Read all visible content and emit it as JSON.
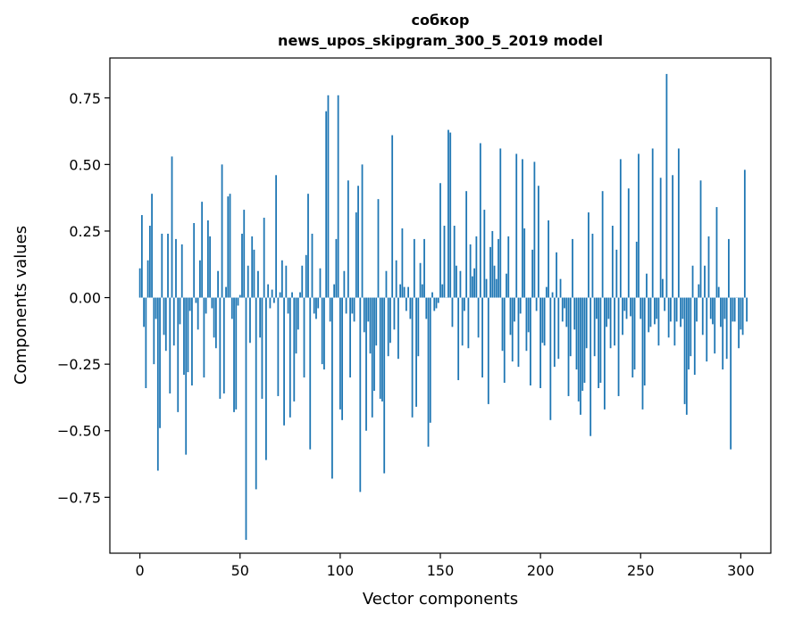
{
  "chart_data": {
    "type": "bar",
    "title_line1": "собкор",
    "title_line2": "news_upos_skipgram_300_5_2019 model",
    "xlabel": "Vector components",
    "ylabel": "Components values",
    "xlim": [
      -15,
      315
    ],
    "ylim": [
      -0.96,
      0.9
    ],
    "xticks": [
      0,
      50,
      100,
      150,
      200,
      250,
      300
    ],
    "xtick_labels": [
      "0",
      "50",
      "100",
      "150",
      "200",
      "250",
      "300"
    ],
    "yticks": [
      -0.75,
      -0.5,
      -0.25,
      0.0,
      0.25,
      0.5,
      0.75
    ],
    "ytick_labels": [
      "−0.75",
      "−0.50",
      "−0.25",
      "0.00",
      "0.25",
      "0.50",
      "0.75"
    ],
    "bar_color": "#1f77b4",
    "values": [
      0.11,
      0.31,
      -0.11,
      -0.34,
      0.14,
      0.27,
      0.39,
      -0.25,
      -0.08,
      -0.65,
      -0.49,
      0.24,
      -0.14,
      -0.2,
      0.24,
      -0.36,
      0.53,
      -0.18,
      0.22,
      -0.43,
      -0.1,
      0.2,
      -0.29,
      -0.59,
      -0.28,
      -0.05,
      -0.33,
      0.28,
      -0.02,
      -0.12,
      0.14,
      0.36,
      -0.3,
      -0.06,
      0.29,
      0.23,
      -0.04,
      -0.15,
      -0.19,
      0.1,
      -0.38,
      0.5,
      -0.36,
      0.04,
      0.38,
      0.39,
      -0.08,
      -0.43,
      -0.42,
      -0.03,
      0.01,
      0.24,
      0.33,
      -0.91,
      0.12,
      -0.17,
      0.23,
      0.18,
      -0.72,
      0.1,
      -0.15,
      -0.38,
      0.3,
      -0.61,
      0.05,
      -0.04,
      0.03,
      -0.02,
      0.46,
      -0.37,
      0.02,
      0.14,
      -0.48,
      0.12,
      -0.06,
      -0.45,
      0.02,
      -0.39,
      -0.21,
      -0.12,
      0.02,
      0.12,
      -0.3,
      0.16,
      0.39,
      -0.57,
      0.24,
      -0.06,
      -0.08,
      -0.04,
      0.11,
      -0.25,
      -0.27,
      0.7,
      0.76,
      -0.09,
      -0.68,
      0.05,
      0.22,
      0.76,
      -0.42,
      -0.46,
      0.1,
      -0.06,
      0.44,
      -0.3,
      -0.06,
      -0.09,
      0.32,
      0.42,
      -0.73,
      0.5,
      -0.13,
      -0.5,
      -0.09,
      -0.21,
      -0.45,
      -0.35,
      -0.18,
      0.37,
      -0.38,
      -0.39,
      -0.66,
      0.1,
      -0.22,
      -0.17,
      0.61,
      -0.12,
      0.14,
      -0.23,
      0.05,
      0.26,
      0.04,
      -0.05,
      0.04,
      -0.08,
      -0.45,
      0.22,
      -0.41,
      -0.22,
      0.13,
      0.05,
      0.22,
      -0.08,
      -0.56,
      -0.47,
      0.02,
      -0.05,
      -0.04,
      -0.02,
      0.43,
      0.05,
      0.27,
      0.0,
      0.63,
      0.62,
      -0.11,
      0.27,
      0.12,
      -0.31,
      0.1,
      -0.18,
      -0.05,
      0.4,
      -0.19,
      0.2,
      0.08,
      0.11,
      0.23,
      -0.15,
      0.58,
      -0.3,
      0.33,
      0.07,
      -0.4,
      0.19,
      0.25,
      0.12,
      0.07,
      0.22,
      0.56,
      -0.2,
      -0.32,
      0.09,
      0.23,
      -0.14,
      -0.24,
      -0.09,
      0.54,
      -0.26,
      -0.06,
      0.52,
      0.26,
      -0.2,
      -0.13,
      -0.33,
      0.18,
      0.51,
      -0.05,
      0.42,
      -0.34,
      -0.17,
      -0.18,
      0.04,
      0.29,
      -0.46,
      0.02,
      -0.26,
      0.17,
      -0.23,
      0.07,
      -0.09,
      -0.04,
      -0.11,
      -0.37,
      -0.22,
      0.22,
      -0.12,
      -0.27,
      -0.39,
      -0.44,
      -0.35,
      -0.32,
      -0.19,
      0.32,
      -0.52,
      0.24,
      -0.22,
      -0.08,
      -0.34,
      -0.32,
      0.4,
      -0.42,
      -0.11,
      -0.08,
      -0.19,
      0.27,
      -0.18,
      0.18,
      -0.37,
      0.52,
      -0.14,
      -0.05,
      -0.08,
      0.41,
      -0.07,
      -0.3,
      -0.27,
      0.21,
      0.54,
      -0.08,
      -0.42,
      -0.33,
      0.09,
      -0.13,
      -0.11,
      0.56,
      -0.1,
      -0.08,
      -0.18,
      0.45,
      0.07,
      -0.05,
      0.84,
      -0.15,
      -0.09,
      0.46,
      -0.18,
      -0.09,
      0.56,
      -0.11,
      -0.08,
      -0.4,
      -0.44,
      -0.27,
      -0.22,
      0.12,
      -0.29,
      -0.09,
      0.05,
      0.44,
      -0.14,
      0.12,
      -0.24,
      0.23,
      -0.08,
      -0.1,
      -0.21,
      0.34,
      0.04,
      -0.11,
      -0.27,
      -0.08,
      -0.23,
      0.22,
      -0.57,
      -0.09,
      -0.09,
      0.0,
      -0.19,
      -0.12,
      -0.14,
      0.48,
      -0.09
    ]
  }
}
